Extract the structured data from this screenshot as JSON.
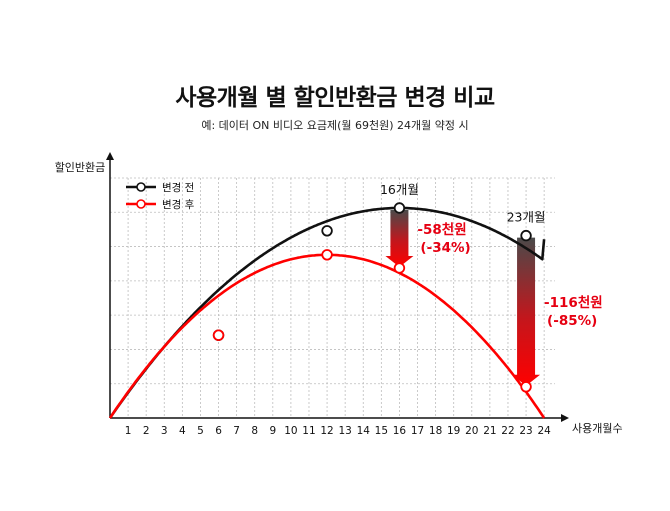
{
  "title": "사용개월 별 할인반환금 변경 비교",
  "subtitle": "예: 데이터 ON 비디오 요금제(월 69천원) 24개월 약정 시",
  "chart_data": {
    "type": "line",
    "xlabel": "사용개월수",
    "ylabel": "할인반환금",
    "x": [
      1,
      2,
      3,
      4,
      5,
      6,
      7,
      8,
      9,
      10,
      11,
      12,
      13,
      14,
      15,
      16,
      17,
      18,
      19,
      20,
      21,
      22,
      23,
      24
    ],
    "xlim": [
      0,
      24.6
    ],
    "ylim": [
      0,
      100
    ],
    "grid": true,
    "legend": "top-left",
    "series": [
      {
        "name": "변경 전",
        "color": "#111111",
        "curve": {
          "type": "quadratic",
          "x0": 0,
          "x1": 24,
          "peak_x": 16,
          "peak_y": 87.5,
          "end_y": 74.5
        },
        "markers": [
          {
            "x": 6,
            "y": 34.5
          },
          {
            "x": 12,
            "y": 78
          },
          {
            "x": 16,
            "y": 87.5
          },
          {
            "x": 23,
            "y": 76
          }
        ]
      },
      {
        "name": "변경 후",
        "color": "#ff0000",
        "curve": {
          "type": "quadratic",
          "x0": 0,
          "x1": 24,
          "peak_x": 12,
          "peak_y": 68
        },
        "markers": [
          {
            "x": 6,
            "y": 34.5
          },
          {
            "x": 12,
            "y": 68
          },
          {
            "x": 16,
            "y": 62.5
          },
          {
            "x": 23,
            "y": 13
          }
        ]
      }
    ],
    "annotations": [
      {
        "label": "16개월",
        "x": 16
      },
      {
        "label": "23개월",
        "x": 23
      }
    ],
    "differences": [
      {
        "x": 16,
        "from": 87.5,
        "to": 62.5,
        "value_label": "-58천원",
        "pct_label": "(-34%)"
      },
      {
        "x": 23,
        "from": 76,
        "to": 13,
        "value_label": "-116천원",
        "pct_label": "(-85%)"
      }
    ]
  }
}
